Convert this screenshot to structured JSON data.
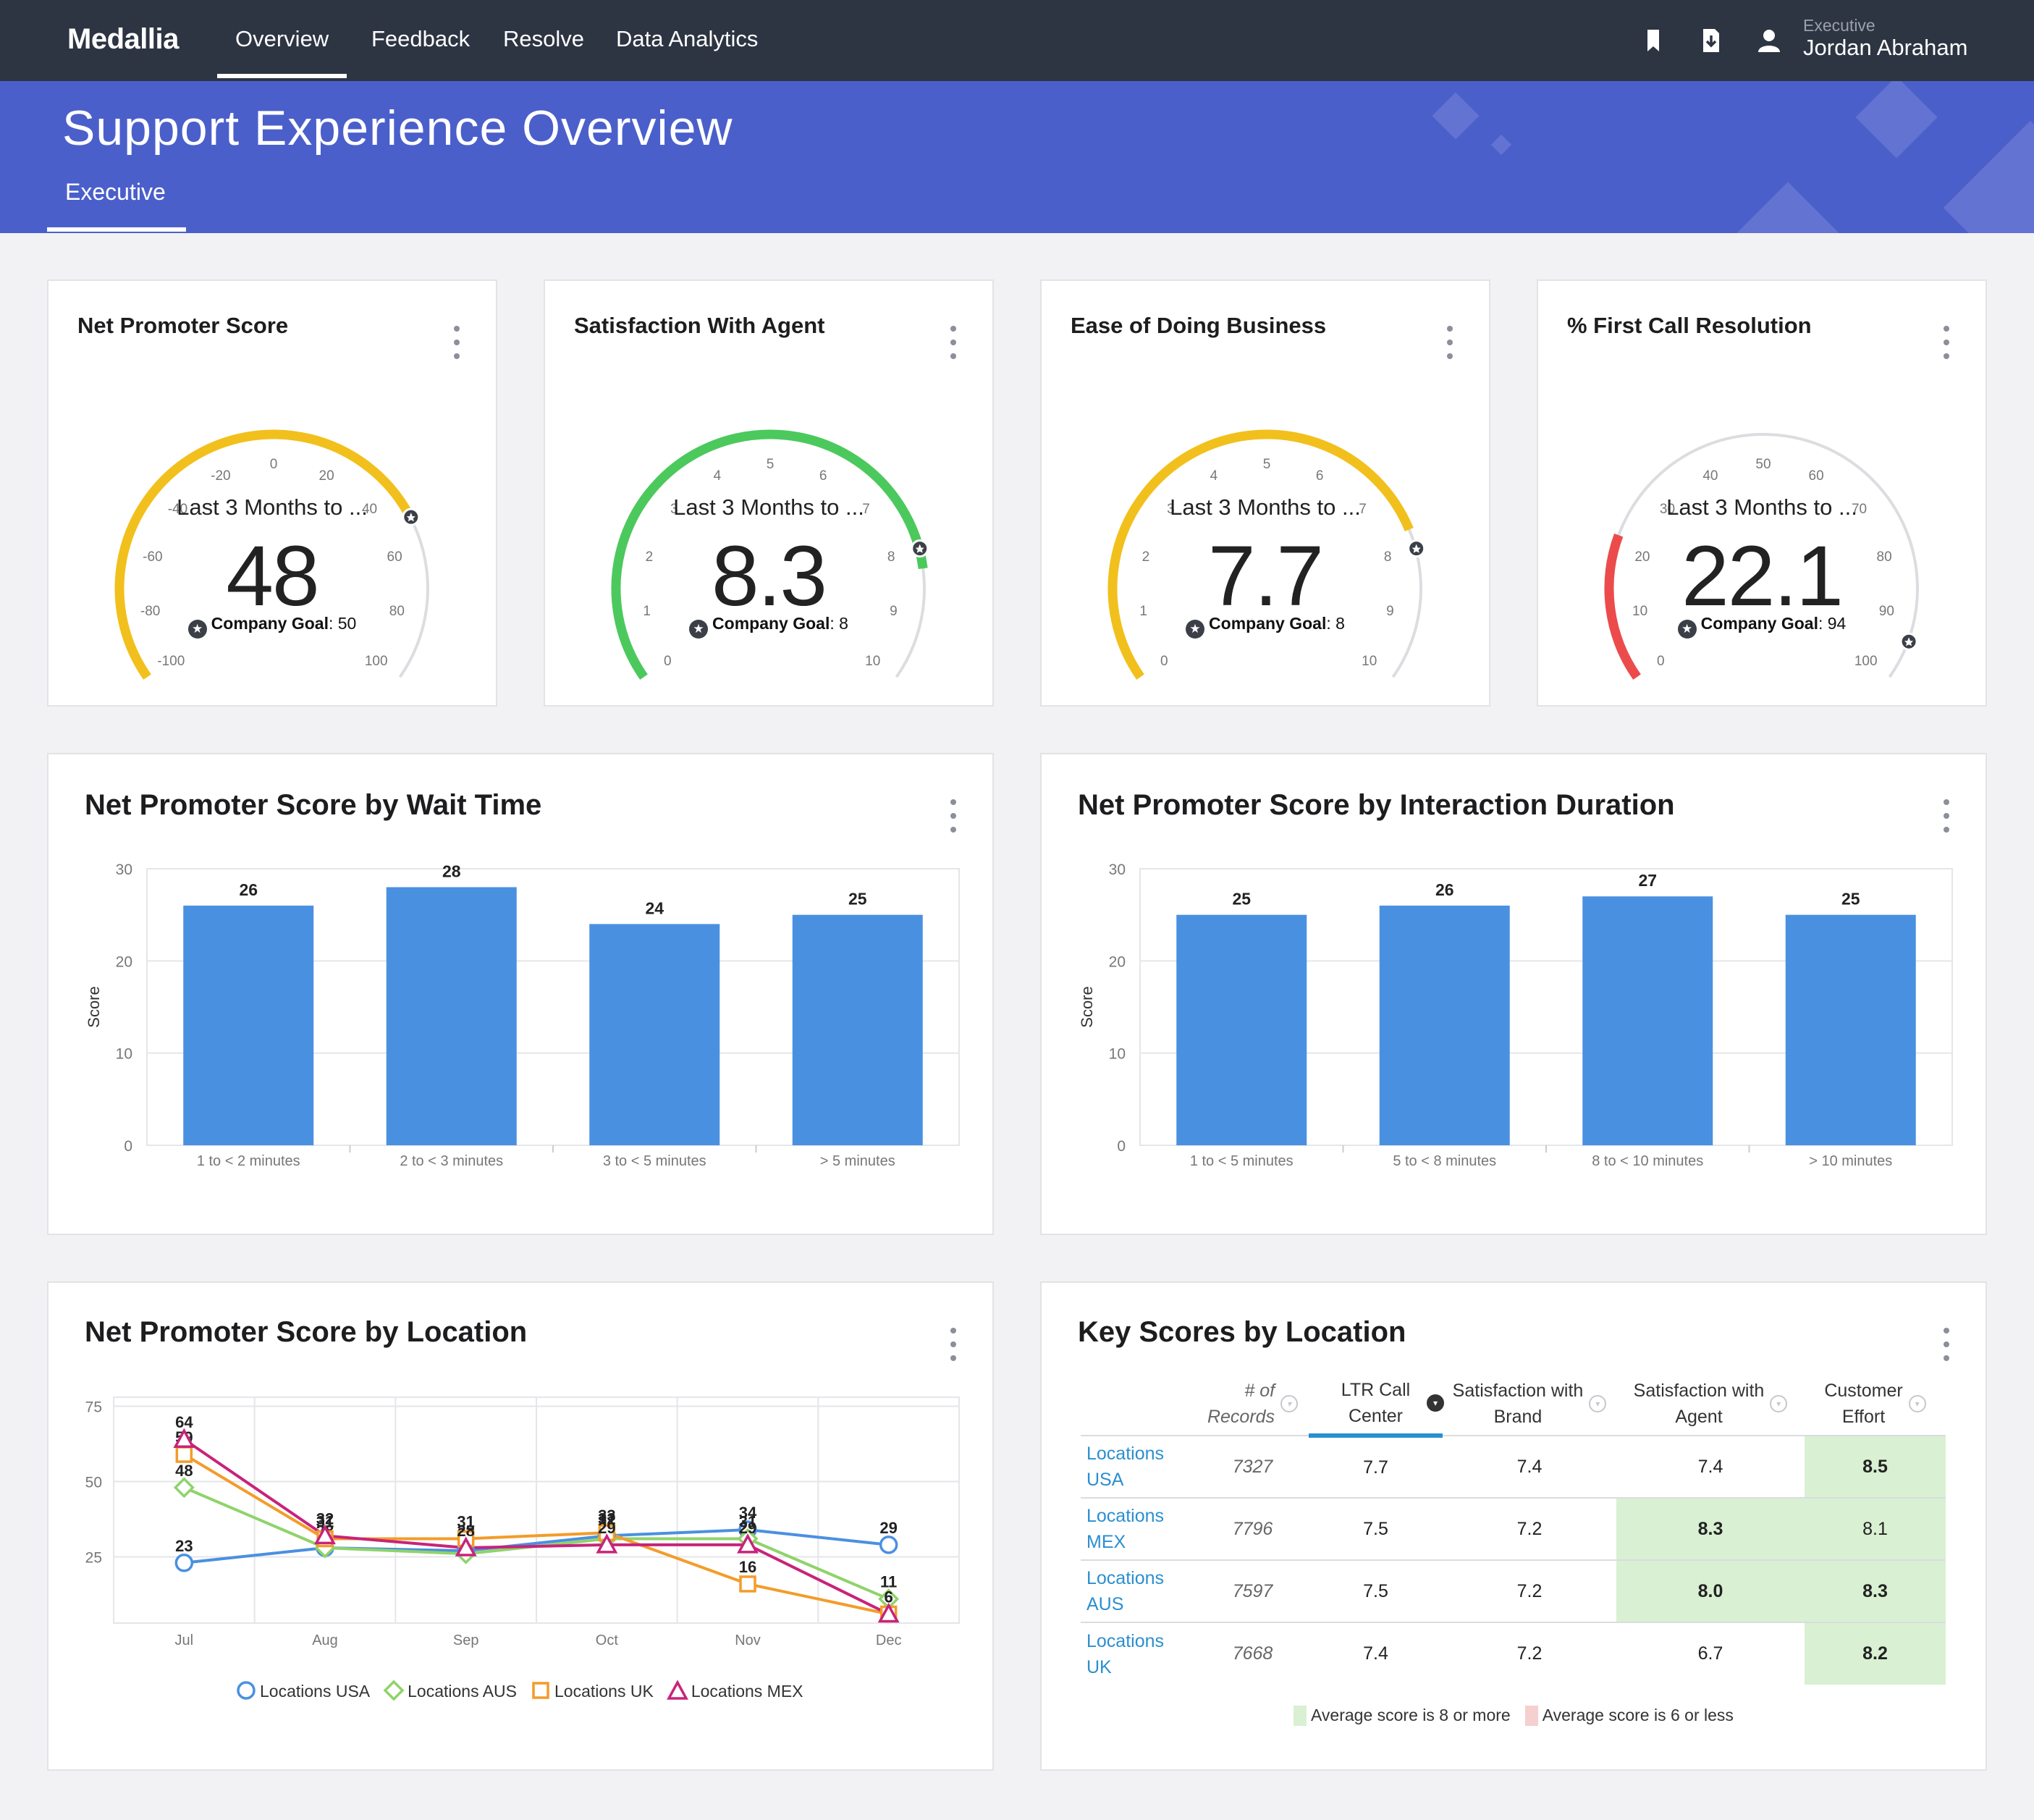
{
  "nav": {
    "brand": "Medallia",
    "items": [
      "Overview",
      "Feedback",
      "Resolve",
      "Data Analytics"
    ],
    "user_role": "Executive",
    "user_name": "Jordan Abraham"
  },
  "header": {
    "title": "Support Experience Overview",
    "tab": "Executive"
  },
  "gauges": [
    {
      "title": "Net Promoter Score",
      "period": "Last 3 Months to ...",
      "value": "48",
      "goal_label": "Company Goal",
      "goal": "50",
      "min": -100,
      "max": 100,
      "ticks": [
        "-100",
        "-80",
        "-60",
        "-40",
        "-20",
        "0",
        "20",
        "40",
        "60",
        "80",
        "100"
      ],
      "numeric_value": 48,
      "goal_value": 50,
      "color": "#f2c01c"
    },
    {
      "title": "Satisfaction With Agent",
      "period": "Last 3 Months to ...",
      "value": "8.3",
      "goal_label": "Company Goal",
      "goal": "8",
      "min": 0,
      "max": 10,
      "ticks": [
        "0",
        "1",
        "2",
        "3",
        "4",
        "5",
        "6",
        "7",
        "8",
        "9",
        "10"
      ],
      "numeric_value": 8.3,
      "goal_value": 8,
      "color": "#4cc95c"
    },
    {
      "title": "Ease of Doing Business",
      "period": "Last 3 Months to ...",
      "value": "7.7",
      "goal_label": "Company Goal",
      "goal": "8",
      "min": 0,
      "max": 10,
      "ticks": [
        "0",
        "1",
        "2",
        "3",
        "4",
        "5",
        "6",
        "7",
        "8",
        "9",
        "10"
      ],
      "numeric_value": 7.7,
      "goal_value": 8,
      "color": "#f2c01c"
    },
    {
      "title": "% First Call Resolution",
      "period": "Last 3 Months to ...",
      "value": "22.1",
      "goal_label": "Company Goal",
      "goal": "94",
      "min": 0,
      "max": 100,
      "ticks": [
        "0",
        "10",
        "20",
        "30",
        "40",
        "50",
        "60",
        "70",
        "80",
        "90",
        "100"
      ],
      "numeric_value": 22.1,
      "goal_value": 94,
      "color": "#ec4b4b"
    }
  ],
  "bar_cards": [
    {
      "title": "Net Promoter Score by Wait Time"
    },
    {
      "title": "Net Promoter Score by Interaction Duration"
    }
  ],
  "line_card": {
    "title": "Net Promoter Score by Location"
  },
  "chart_data": [
    {
      "type": "bar",
      "title": "Net Promoter Score by Wait Time",
      "ylabel": "Score",
      "xlabel": "",
      "categories": [
        "1 to < 2 minutes",
        "2 to < 3 minutes",
        "3 to < 5 minutes",
        "> 5 minutes"
      ],
      "values": [
        26,
        28,
        24,
        25
      ],
      "ylim": [
        0,
        30
      ],
      "yticks": [
        "0",
        "10",
        "20",
        "30"
      ],
      "grid": true,
      "color": "#4a90e0"
    },
    {
      "type": "bar",
      "title": "Net Promoter Score by Interaction Duration",
      "ylabel": "Score",
      "xlabel": "",
      "categories": [
        "1 to < 5 minutes",
        "5 to < 8 minutes",
        "8 to < 10 minutes",
        "> 10 minutes"
      ],
      "values": [
        25,
        26,
        27,
        25
      ],
      "ylim": [
        0,
        30
      ],
      "yticks": [
        "0",
        "10",
        "20",
        "30"
      ],
      "grid": true,
      "color": "#4a90e0"
    },
    {
      "type": "line",
      "title": "Net Promoter Score by Location",
      "categories": [
        "Jul",
        "Aug",
        "Sep",
        "Oct",
        "Nov",
        "Dec"
      ],
      "ylim": [
        3,
        78
      ],
      "yticks": [
        "25",
        "50",
        "75"
      ],
      "ytick_values": [
        25,
        50,
        75
      ],
      "grid": true,
      "legend": "bottom",
      "series": [
        {
          "name": "Locations USA",
          "values": [
            23,
            28,
            27,
            32,
            34,
            29
          ],
          "color": "#4a90e0",
          "marker": "circle"
        },
        {
          "name": "Locations AUS",
          "values": [
            48,
            28,
            26,
            31,
            31,
            11
          ],
          "color": "#8fd36a",
          "marker": "diamond"
        },
        {
          "name": "Locations UK",
          "values": [
            59,
            31,
            31,
            33,
            16,
            6
          ],
          "color": "#f39c2a",
          "marker": "square"
        },
        {
          "name": "Locations MEX",
          "values": [
            64,
            32,
            28,
            29,
            29,
            6
          ],
          "color": "#c8237a",
          "marker": "triangle"
        }
      ]
    }
  ],
  "table": {
    "title": "Key Scores by Location",
    "headers": [
      {
        "l1": "# of",
        "l2": "Records"
      },
      {
        "l1": "LTR Call",
        "l2": "Center"
      },
      {
        "l1": "Satisfaction with",
        "l2": "Brand"
      },
      {
        "l1": "Satisfaction with",
        "l2": "Agent"
      },
      {
        "l1": "Customer",
        "l2": "Effort"
      }
    ],
    "rows": [
      {
        "l1": "Locations",
        "l2": "USA",
        "records": "7327",
        "ltr": "7.7",
        "brand": "7.4",
        "agent": "7.4",
        "effort": "8.5"
      },
      {
        "l1": "Locations",
        "l2": "MEX",
        "records": "7796",
        "ltr": "7.5",
        "brand": "7.2",
        "agent": "8.3",
        "effort": "8.1"
      },
      {
        "l1": "Locations",
        "l2": "AUS",
        "records": "7597",
        "ltr": "7.5",
        "brand": "7.2",
        "agent": "8.0",
        "effort": "8.3"
      },
      {
        "l1": "Locations",
        "l2": "UK",
        "records": "7668",
        "ltr": "7.4",
        "brand": "7.2",
        "agent": "6.7",
        "effort": "8.2"
      }
    ],
    "legend_good": "Average score is 8 or more",
    "legend_bad": "Average score is 6 or less",
    "good_color": "#d9f0d3",
    "bad_color": "#f6cfcf"
  }
}
